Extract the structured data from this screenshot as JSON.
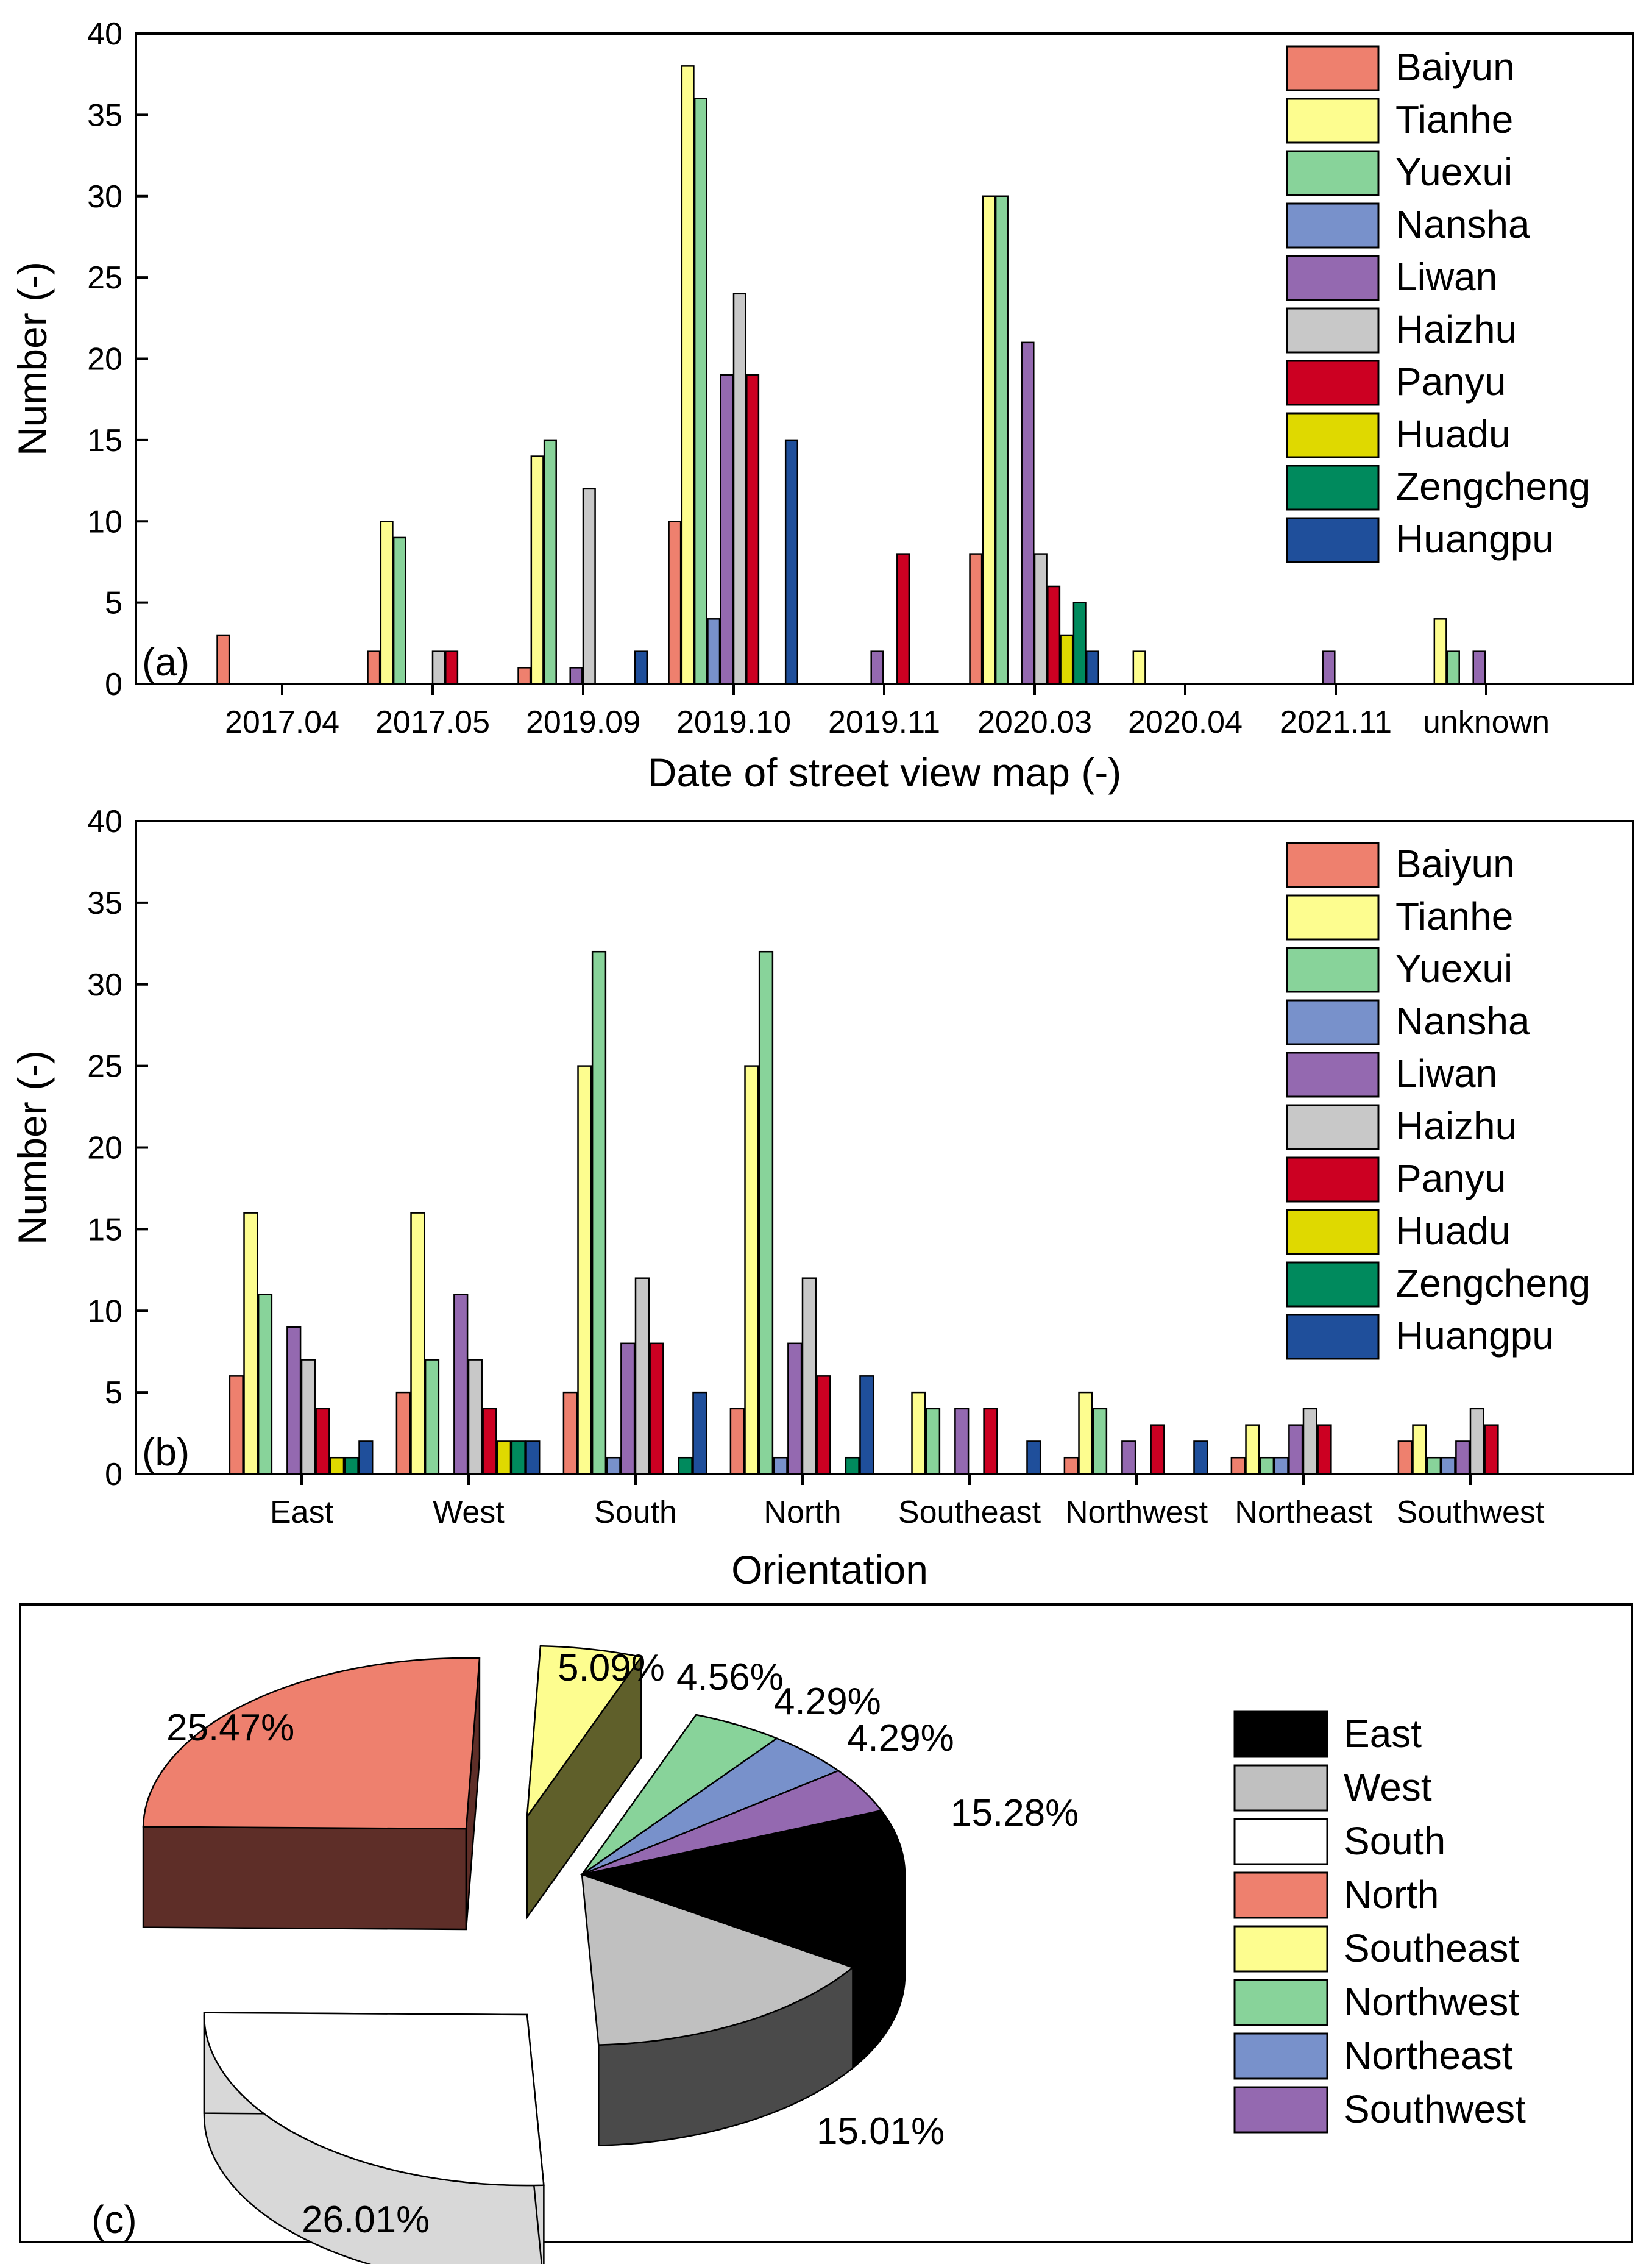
{
  "colors": {
    "Baiyun": "#ee806e",
    "Tianhe": "#fdfd8f",
    "Yuexui": "#88d39a",
    "Nansha": "#7891cb",
    "Liwan": "#9469b0",
    "Haizhu": "#c8c8c8",
    "Panyu": "#cc0022",
    "Huadu": "#dfd900",
    "Zengcheng": "#008a5d",
    "Huangpu": "#1f4f9b"
  },
  "chart_data": [
    {
      "id": "a",
      "type": "bar",
      "panel_label": "(a)",
      "xlabel": "Date of street view map (-)",
      "ylabel": "Number (-)",
      "ylim": [
        0,
        40
      ],
      "yticks": [
        "0",
        "5",
        "10",
        "15",
        "20",
        "25",
        "30",
        "35",
        "40"
      ],
      "categories": [
        "2017.04",
        "2017.05",
        "2019.09",
        "2019.10",
        "2019.11",
        "2020.03",
        "2020.04",
        "2021.11",
        "unknown"
      ],
      "legend_position": "top-right",
      "series": [
        {
          "name": "Baiyun",
          "values": [
            3,
            2,
            1,
            10,
            0,
            8,
            0,
            0,
            0
          ]
        },
        {
          "name": "Tianhe",
          "values": [
            0,
            10,
            14,
            38,
            0,
            30,
            2,
            0,
            4
          ]
        },
        {
          "name": "Yuexui",
          "values": [
            0,
            9,
            15,
            36,
            0,
            30,
            0,
            0,
            2
          ]
        },
        {
          "name": "Nansha",
          "values": [
            0,
            0,
            0,
            4,
            0,
            0,
            0,
            0,
            0
          ]
        },
        {
          "name": "Liwan",
          "values": [
            0,
            0,
            1,
            19,
            2,
            21,
            0,
            2,
            2
          ]
        },
        {
          "name": "Haizhu",
          "values": [
            0,
            2,
            12,
            24,
            0,
            8,
            0,
            0,
            0
          ]
        },
        {
          "name": "Panyu",
          "values": [
            0,
            2,
            0,
            19,
            8,
            6,
            0,
            0,
            0
          ]
        },
        {
          "name": "Huadu",
          "values": [
            0,
            0,
            0,
            0,
            0,
            3,
            0,
            0,
            0
          ]
        },
        {
          "name": "Zengcheng",
          "values": [
            0,
            0,
            0,
            0,
            0,
            5,
            0,
            0,
            0
          ]
        },
        {
          "name": "Huangpu",
          "values": [
            0,
            0,
            2,
            15,
            0,
            2,
            0,
            0,
            0
          ]
        }
      ]
    },
    {
      "id": "b",
      "type": "bar",
      "panel_label": "(b)",
      "xlabel": "Orientation",
      "ylabel": "Number (-)",
      "ylim": [
        0,
        40
      ],
      "yticks": [
        "0",
        "5",
        "10",
        "15",
        "20",
        "25",
        "30",
        "35",
        "40"
      ],
      "categories": [
        "East",
        "West",
        "South",
        "North",
        "Southeast",
        "Northwest",
        "Northeast",
        "Southwest"
      ],
      "legend_position": "top-right",
      "series": [
        {
          "name": "Baiyun",
          "values": [
            6,
            5,
            5,
            4,
            0,
            1,
            1,
            2
          ]
        },
        {
          "name": "Tianhe",
          "values": [
            16,
            16,
            25,
            25,
            5,
            5,
            3,
            3
          ]
        },
        {
          "name": "Yuexui",
          "values": [
            11,
            7,
            32,
            32,
            4,
            4,
            1,
            1
          ]
        },
        {
          "name": "Nansha",
          "values": [
            0,
            0,
            1,
            1,
            0,
            0,
            1,
            1
          ]
        },
        {
          "name": "Liwan",
          "values": [
            9,
            11,
            8,
            8,
            4,
            2,
            3,
            2
          ]
        },
        {
          "name": "Haizhu",
          "values": [
            7,
            7,
            12,
            12,
            0,
            0,
            4,
            4
          ]
        },
        {
          "name": "Panyu",
          "values": [
            4,
            4,
            8,
            6,
            4,
            3,
            3,
            3
          ]
        },
        {
          "name": "Huadu",
          "values": [
            1,
            2,
            0,
            0,
            0,
            0,
            0,
            0
          ]
        },
        {
          "name": "Zengcheng",
          "values": [
            1,
            2,
            1,
            1,
            0,
            0,
            0,
            0
          ]
        },
        {
          "name": "Huangpu",
          "values": [
            2,
            2,
            5,
            6,
            2,
            2,
            0,
            0
          ]
        }
      ]
    },
    {
      "id": "c",
      "type": "pie",
      "panel_label": "(c)",
      "legend_position": "right",
      "slices": [
        {
          "name": "East",
          "value": 15.28,
          "label": "15.28%",
          "color": "#000000"
        },
        {
          "name": "West",
          "value": 15.01,
          "label": "15.01%",
          "color": "#c0c0c0"
        },
        {
          "name": "South",
          "value": 26.01,
          "label": "26.01%",
          "color": "#ffffff"
        },
        {
          "name": "North",
          "value": 25.47,
          "label": "25.47%",
          "color": "#ee806e"
        },
        {
          "name": "Southeast",
          "value": 5.09,
          "label": "5.09%",
          "color": "#fdfd8f"
        },
        {
          "name": "Northwest",
          "value": 4.56,
          "label": "4.56%",
          "color": "#88d39a"
        },
        {
          "name": "Northeast",
          "value": 4.29,
          "label": "4.29%",
          "color": "#7891cb"
        },
        {
          "name": "Southwest",
          "value": 4.29,
          "label": "4.29%",
          "color": "#9469b0"
        }
      ]
    }
  ]
}
